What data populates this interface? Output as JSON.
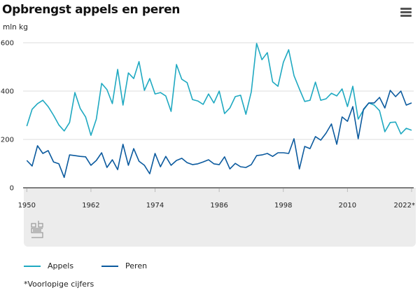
{
  "header": {
    "title": "Opbrengst appels en peren",
    "menu_icon": "hamburger-menu-icon"
  },
  "footnote": "*Voorlopige cijfers",
  "logo": "cbs-logo",
  "chart_data": {
    "type": "line",
    "title": "Opbrengst appels en peren",
    "ylabel": "mln kg",
    "xlabel": "",
    "ylim": [
      0,
      600
    ],
    "yticks": [
      0,
      200,
      400,
      600
    ],
    "xlim": [
      1950,
      2022
    ],
    "xticks": [
      1950,
      1962,
      1974,
      1986,
      1998,
      2010,
      2022
    ],
    "xtick_labels": [
      "1950",
      "1962",
      "1974",
      "1986",
      "1998",
      "2010",
      "2022*"
    ],
    "grid": "horizontal",
    "legend_position": "bottom-left",
    "x": [
      1950,
      1951,
      1952,
      1953,
      1954,
      1955,
      1956,
      1957,
      1958,
      1959,
      1960,
      1961,
      1962,
      1963,
      1964,
      1965,
      1966,
      1967,
      1968,
      1969,
      1970,
      1971,
      1972,
      1973,
      1974,
      1975,
      1976,
      1977,
      1978,
      1979,
      1980,
      1981,
      1982,
      1983,
      1984,
      1985,
      1986,
      1987,
      1988,
      1989,
      1990,
      1991,
      1992,
      1993,
      1994,
      1995,
      1996,
      1997,
      1998,
      1999,
      2000,
      2001,
      2002,
      2003,
      2004,
      2005,
      2006,
      2007,
      2008,
      2009,
      2010,
      2011,
      2012,
      2013,
      2014,
      2015,
      2016,
      2017,
      2018,
      2019,
      2020,
      2021,
      2022
    ],
    "series": [
      {
        "name": "Appels",
        "color": "#1fa9c1",
        "values": [
          255,
          325,
          348,
          362,
          336,
          300,
          260,
          235,
          270,
          394,
          328,
          293,
          217,
          284,
          432,
          406,
          348,
          490,
          342,
          475,
          452,
          522,
          403,
          452,
          388,
          394,
          380,
          316,
          510,
          449,
          435,
          365,
          359,
          345,
          388,
          351,
          400,
          307,
          330,
          377,
          383,
          304,
          397,
          597,
          530,
          559,
          438,
          420,
          519,
          571,
          464,
          409,
          357,
          362,
          437,
          362,
          368,
          391,
          380,
          409,
          336,
          420,
          284,
          322,
          351,
          342,
          319,
          232,
          270,
          272,
          223,
          246,
          238
        ]
      },
      {
        "name": "Peren",
        "color": "#0b5a9e",
        "values": [
          113,
          90,
          174,
          142,
          154,
          107,
          99,
          43,
          136,
          133,
          130,
          128,
          93,
          113,
          145,
          84,
          116,
          75,
          180,
          93,
          162,
          110,
          93,
          58,
          142,
          87,
          130,
          93,
          113,
          122,
          104,
          96,
          99,
          107,
          116,
          99,
          96,
          128,
          78,
          101,
          87,
          84,
          96,
          133,
          136,
          142,
          130,
          145,
          145,
          142,
          203,
          78,
          171,
          162,
          212,
          197,
          226,
          264,
          180,
          293,
          275,
          336,
          203,
          325,
          351,
          351,
          374,
          330,
          403,
          377,
          400,
          342,
          351
        ]
      }
    ]
  }
}
